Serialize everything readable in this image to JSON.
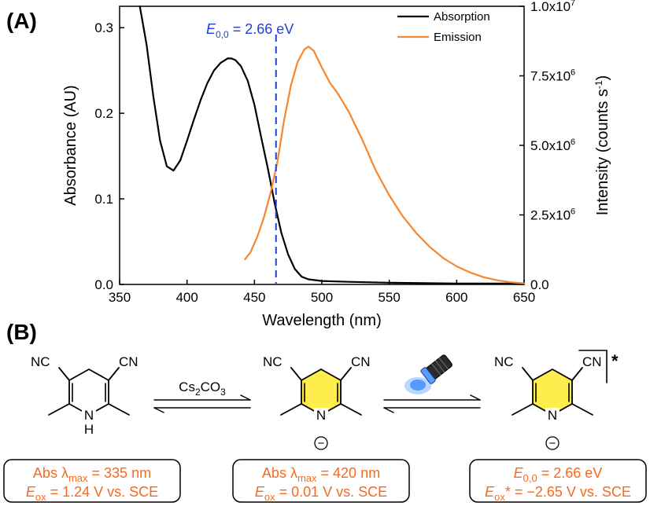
{
  "panel_a_label": "(A)",
  "panel_b_label": "(B)",
  "chart_data": {
    "type": "line",
    "title": "",
    "xlabel": "Wavelength (nm)",
    "ylabel": "Absorbance (AU)",
    "y2label": "Intensity (counts s-1)",
    "xlim": [
      350,
      650
    ],
    "ylim": [
      0,
      0.325
    ],
    "y2lim": [
      0,
      10000000
    ],
    "x_ticks": [
      350,
      400,
      450,
      500,
      550,
      600,
      650
    ],
    "y_ticks": [
      0.0,
      0.1,
      0.2,
      0.3
    ],
    "y_tick_labels": [
      "0.0",
      "0.1",
      "0.2",
      "0.3"
    ],
    "y2_tick_labels": [
      {
        "value": 0,
        "mantissa": "0.0",
        "exp": ""
      },
      {
        "value": 2500000,
        "mantissa": "2.5x10",
        "exp": "6"
      },
      {
        "value": 5000000,
        "mantissa": "5.0x10",
        "exp": "6"
      },
      {
        "value": 7500000,
        "mantissa": "7.5x10",
        "exp": "6"
      },
      {
        "value": 10000000,
        "mantissa": "1.0x10",
        "exp": "7"
      }
    ],
    "legend_position": "top-right",
    "series": [
      {
        "name": "Absorption",
        "axis": "left",
        "color": "#000000",
        "x": [
          365,
          370,
          375,
          380,
          385,
          390,
          395,
          400,
          405,
          410,
          415,
          420,
          425,
          430,
          433,
          436,
          440,
          445,
          450,
          455,
          460,
          465,
          470,
          475,
          480,
          485,
          490,
          500,
          520,
          550,
          600,
          650
        ],
        "y": [
          0.325,
          0.28,
          0.22,
          0.168,
          0.138,
          0.133,
          0.145,
          0.168,
          0.192,
          0.215,
          0.235,
          0.25,
          0.259,
          0.264,
          0.264,
          0.262,
          0.255,
          0.238,
          0.21,
          0.172,
          0.135,
          0.095,
          0.06,
          0.035,
          0.018,
          0.009,
          0.006,
          0.004,
          0.003,
          0.002,
          0.001,
          0.001
        ]
      },
      {
        "name": "Emission",
        "axis": "right",
        "color": "#F7862D",
        "x": [
          443,
          447,
          452,
          457,
          462,
          467,
          472,
          477,
          482,
          487,
          490,
          494,
          500,
          506,
          512,
          520,
          530,
          540,
          550,
          560,
          570,
          580,
          590,
          600,
          610,
          620,
          630,
          640,
          650
        ],
        "y": [
          900000,
          1150000,
          1700000,
          2400000,
          3300000,
          4400000,
          5900000,
          7150000,
          8000000,
          8450000,
          8550000,
          8400000,
          7800000,
          7250000,
          6850000,
          6200000,
          5200000,
          4100000,
          3200000,
          2450000,
          1850000,
          1350000,
          950000,
          650000,
          430000,
          260000,
          150000,
          80000,
          40000
        ]
      }
    ],
    "annotations": [
      {
        "type": "vline",
        "x": 466,
        "color": "#1F3FD6",
        "style": "dashed",
        "label_symbol": "E",
        "label_sub": "0,0",
        "label_value": " = 2.66 eV"
      }
    ]
  },
  "scheme": {
    "arrow1_reagent_main": "Cs",
    "arrow1_reagent_sub1": "2",
    "arrow1_reagent_mid": "CO",
    "arrow1_reagent_sub2": "3",
    "nc_label": "NC",
    "cn_label": "CN",
    "n_label": "N",
    "h_label": "H",
    "minus_label": "−",
    "star_label": "*",
    "ring_fill": "#FFED4D",
    "label_color": "#F26B21",
    "box1": {
      "line1_pre": "Abs λ",
      "line1_sub": "max",
      "line1_post": " = 335 nm",
      "line2_sym": "E",
      "line2_sub": "ox",
      "line2_post": " = 1.24 V vs. SCE"
    },
    "box2": {
      "line1_pre": "Abs λ",
      "line1_sub": "max",
      "line1_post": " = 420 nm",
      "line2_sym": "E",
      "line2_sub": "ox",
      "line2_post": " = 0.01 V vs. SCE"
    },
    "box3": {
      "line1_sym": "E",
      "line1_sub": "0,0",
      "line1_post": " = 2.66 eV",
      "line2_sym": "E",
      "line2_sub": "ox",
      "line2_post": "* = −2.65 V vs. SCE"
    }
  }
}
